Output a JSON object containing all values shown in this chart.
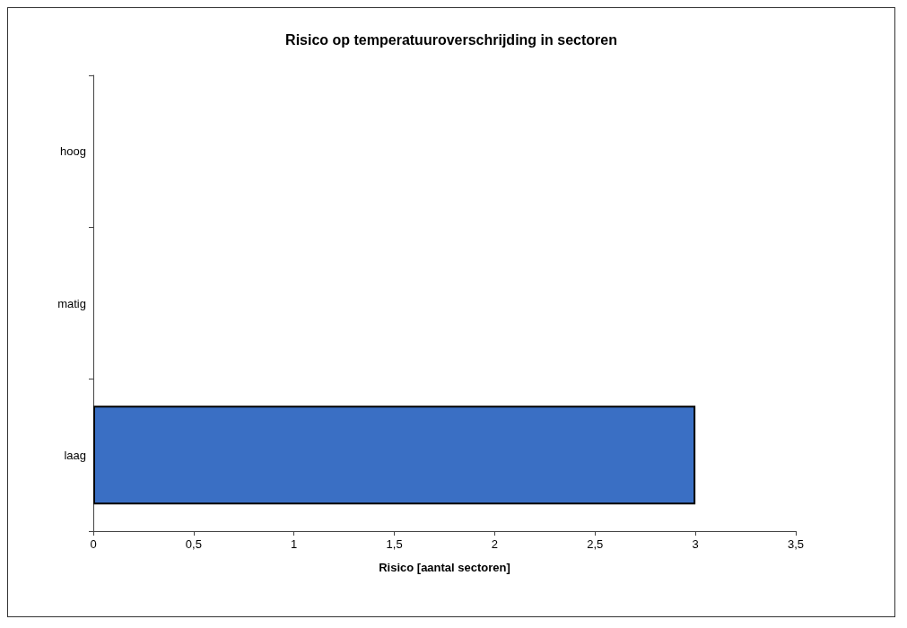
{
  "chart_data": {
    "type": "bar",
    "orientation": "horizontal",
    "title": "Risico op temperatuuroverschrijding in sectoren",
    "xlabel": "Risico [aantal sectoren]",
    "categories": [
      "hoog",
      "matig",
      "laag"
    ],
    "values": [
      0,
      0,
      3
    ],
    "color": "#3a6fc4",
    "xlim": [
      0,
      3.5
    ],
    "xticks": [
      0,
      {
        "value": 0.5,
        "label": "0,5"
      },
      1,
      {
        "value": 1.5,
        "label": "1,5"
      },
      2,
      {
        "value": 2.5,
        "label": "2,5"
      },
      3,
      {
        "value": 3.5,
        "label": "3,5"
      }
    ],
    "grid": false
  }
}
